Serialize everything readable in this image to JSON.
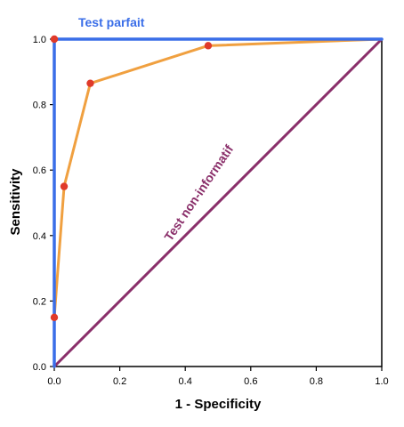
{
  "chart_data": {
    "type": "line",
    "xlabel": "1 - Specificity",
    "ylabel": "Sensitivity",
    "xlim": [
      0,
      1
    ],
    "ylim": [
      0,
      1
    ],
    "x_ticks": [
      "0.0",
      "0.2",
      "0.4",
      "0.6",
      "0.8",
      "1.0"
    ],
    "y_ticks": [
      "0.0",
      "0.2",
      "0.4",
      "0.6",
      "0.8",
      "1.0"
    ],
    "grid": false,
    "series": [
      {
        "color": "#f0a040",
        "points": [
          [
            0,
            0
          ],
          [
            0,
            0.15
          ],
          [
            0.03,
            0.55
          ],
          [
            0.11,
            0.865
          ],
          [
            0.47,
            0.98
          ],
          [
            1,
            1
          ]
        ],
        "marker_color": "#e03a2a",
        "markers": [
          [
            0,
            0.15
          ],
          [
            0.03,
            0.55
          ],
          [
            0.11,
            0.865
          ],
          [
            0.47,
            0.98
          ],
          [
            0,
            1
          ]
        ]
      },
      {
        "name": "Test parfait",
        "color": "#3a6ee8",
        "points": [
          [
            0,
            0
          ],
          [
            0,
            1
          ],
          [
            1,
            1
          ]
        ]
      },
      {
        "name": "Test non-informatif",
        "color": "#8a2f6a",
        "points": [
          [
            0,
            0
          ],
          [
            1,
            1
          ]
        ]
      }
    ],
    "annotations": {
      "perfect": "Test parfait",
      "random": "Test non-informatif"
    }
  }
}
